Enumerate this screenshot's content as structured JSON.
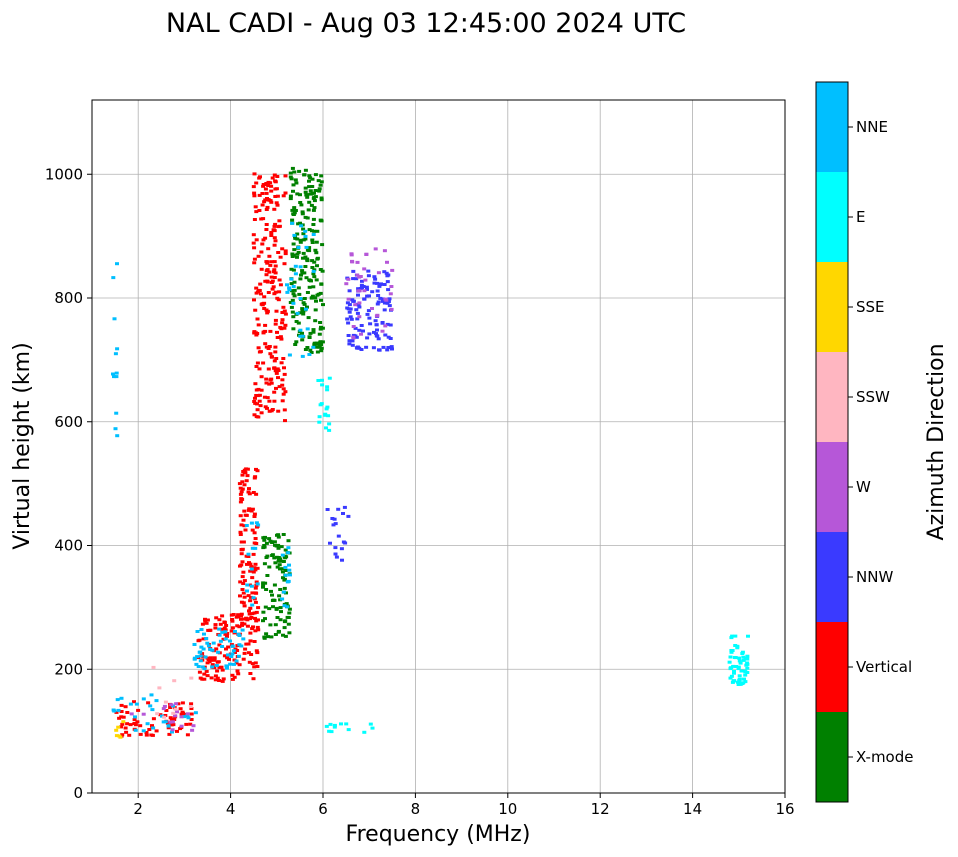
{
  "chart_data": {
    "type": "scatter",
    "title": "NAL CADI - Aug 03 12:45:00 2024 UTC",
    "xlabel": "Frequency (MHz)",
    "ylabel": "Virtual height (km)",
    "xlim": [
      1,
      16
    ],
    "ylim": [
      0,
      1120
    ],
    "xticks": [
      "2",
      "4",
      "6",
      "8",
      "10",
      "12",
      "14",
      "16"
    ],
    "yticks": [
      "0",
      "200",
      "400",
      "600",
      "800",
      "1000"
    ],
    "grid": true,
    "colorbar": {
      "label": "Azimuth Direction",
      "categories": [
        {
          "name": "X-mode",
          "color": "#008000"
        },
        {
          "name": "Vertical",
          "color": "#ff0000"
        },
        {
          "name": "NNW",
          "color": "#3a3aff"
        },
        {
          "name": "W",
          "color": "#b657d8"
        },
        {
          "name": "SSW",
          "color": "#ffb6c1"
        },
        {
          "name": "SSE",
          "color": "#ffd700"
        },
        {
          "name": "E",
          "color": "#00ffff"
        },
        {
          "name": "NNE",
          "color": "#00bfff"
        }
      ]
    },
    "clusters": [
      {
        "category": "Vertical",
        "f_range": [
          1.45,
          3.2
        ],
        "h_range": [
          90,
          150
        ],
        "n": 70
      },
      {
        "category": "NNE",
        "f_range": [
          1.45,
          3.25
        ],
        "h_range": [
          95,
          160
        ],
        "n": 28
      },
      {
        "category": "W",
        "f_range": [
          1.8,
          3.2
        ],
        "h_range": [
          100,
          145
        ],
        "n": 16
      },
      {
        "category": "SSW",
        "f_range": [
          2.2,
          3.2
        ],
        "h_range": [
          100,
          205
        ],
        "n": 10
      },
      {
        "category": "SSE",
        "f_range": [
          1.5,
          1.7
        ],
        "h_range": [
          88,
          120
        ],
        "n": 6
      },
      {
        "category": "Vertical",
        "f_range": [
          3.3,
          4.6
        ],
        "h_range": [
          180,
          290
        ],
        "n": 130
      },
      {
        "category": "NNE",
        "f_range": [
          3.2,
          4.3
        ],
        "h_range": [
          200,
          265
        ],
        "n": 55
      },
      {
        "category": "Vertical",
        "f_range": [
          4.2,
          4.6
        ],
        "h_range": [
          260,
          530
        ],
        "n": 120
      },
      {
        "category": "NNE",
        "f_range": [
          4.3,
          4.6
        ],
        "h_range": [
          300,
          440
        ],
        "n": 14
      },
      {
        "category": "Vertical",
        "f_range": [
          4.5,
          5.2
        ],
        "h_range": [
          600,
          1005
        ],
        "n": 240
      },
      {
        "category": "X-mode",
        "f_range": [
          4.7,
          5.3
        ],
        "h_range": [
          250,
          420
        ],
        "n": 110
      },
      {
        "category": "NNE",
        "f_range": [
          5.1,
          5.3
        ],
        "h_range": [
          300,
          400
        ],
        "n": 14
      },
      {
        "category": "X-mode",
        "f_range": [
          5.3,
          6.0
        ],
        "h_range": [
          710,
          1010
        ],
        "n": 220
      },
      {
        "category": "NNE",
        "f_range": [
          5.2,
          5.8
        ],
        "h_range": [
          700,
          930
        ],
        "n": 30
      },
      {
        "category": "E",
        "f_range": [
          5.9,
          6.15
        ],
        "h_range": [
          585,
          680
        ],
        "n": 18
      },
      {
        "category": "NNW",
        "f_range": [
          6.5,
          7.5
        ],
        "h_range": [
          715,
          845
        ],
        "n": 120
      },
      {
        "category": "W",
        "f_range": [
          6.5,
          7.5
        ],
        "h_range": [
          730,
          880
        ],
        "n": 40
      },
      {
        "category": "NNW",
        "f_range": [
          6.1,
          6.6
        ],
        "h_range": [
          370,
          465
        ],
        "n": 18
      },
      {
        "category": "E",
        "f_range": [
          6.0,
          7.1
        ],
        "h_range": [
          98,
          112
        ],
        "n": 12
      },
      {
        "category": "E",
        "f_range": [
          14.8,
          15.2
        ],
        "h_range": [
          175,
          255
        ],
        "n": 60
      },
      {
        "category": "NNE",
        "f_range": [
          1.45,
          1.55
        ],
        "h_range": [
          560,
          890
        ],
        "n": 12
      }
    ]
  }
}
